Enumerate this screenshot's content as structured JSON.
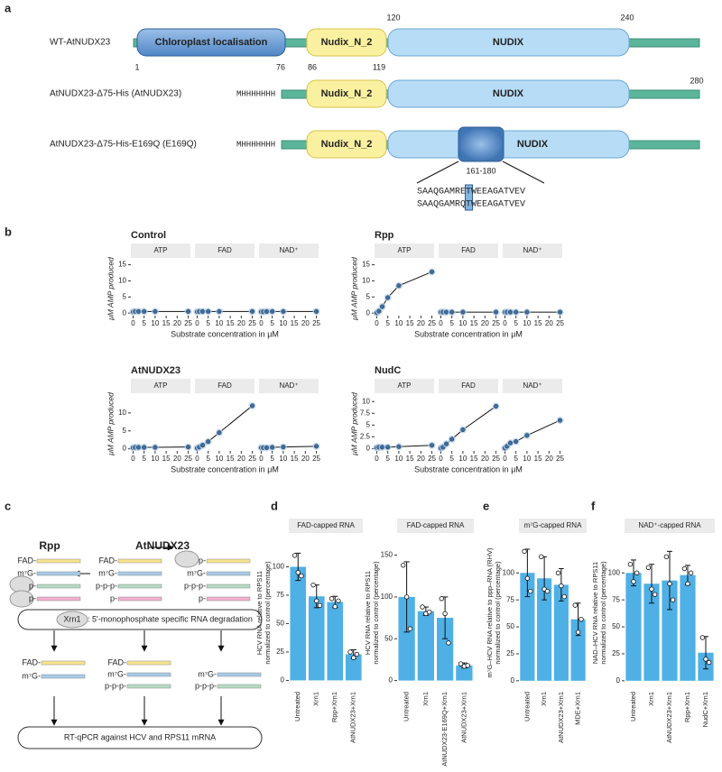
{
  "panel_labels": [
    "a",
    "b",
    "c",
    "d",
    "e",
    "f"
  ],
  "panel_a": {
    "rows": [
      "WT-AtNUDX23",
      "AtNUDX23-Δ75-His (AtNUDX23)",
      "AtNUDX23-Δ75-His-E169Q (E169Q)"
    ],
    "domains": {
      "chloroplast": "Chloroplast localisation",
      "nudix_n2": "Nudix_N_2",
      "nudix": "NUDIX"
    },
    "positions": [
      1,
      76,
      86,
      119,
      120,
      240,
      280
    ],
    "tag": "MHHHHHHH",
    "region": "161-180",
    "sequences": [
      "SAAQGAMRETWEEAGATVEV",
      "SAAQGAMRQTWEEAGATVEV"
    ]
  },
  "panel_c": {
    "headers": [
      "Rpp",
      "AtNUDX23"
    ],
    "caps": {
      "fad": "FAD-",
      "m7g": "m⁷G-",
      "ppp": "p-p-p-",
      "p": "p-"
    },
    "enzyme": "Xrn1",
    "degradation": ": 5'-monophosphate specific RNA degradation",
    "readout": "RT-qPCR against HCV and RPS11 mRNA"
  },
  "chart_data": [
    {
      "type": "line",
      "title": "Control",
      "ylabel": "μM AMP produced",
      "xlabel": "Substrate concentration in μM",
      "x": [
        0,
        1,
        2.5,
        5,
        10,
        25
      ],
      "xlim": [
        -1,
        26
      ],
      "xticks": [
        0,
        5,
        10,
        15,
        20,
        25
      ],
      "ylim": [
        -0.8,
        16
      ],
      "yticks": [
        0,
        5,
        10,
        15
      ],
      "color": "#3b6fa0",
      "facets": [
        {
          "label": "ATP",
          "values": [
            0.4,
            0.5,
            0.5,
            0.5,
            0.5,
            0.5
          ]
        },
        {
          "label": "FAD",
          "values": [
            0.4,
            0.5,
            0.5,
            0.5,
            0.5,
            0.5
          ]
        },
        {
          "label": "NAD⁺",
          "values": [
            0.4,
            0.4,
            0.5,
            0.5,
            0.5,
            0.5
          ]
        }
      ]
    },
    {
      "type": "line",
      "title": "Rpp",
      "ylabel": "μM AMP produced",
      "xlabel": "Substrate concentration in μM",
      "x": [
        0,
        1,
        2.5,
        5,
        10,
        25
      ],
      "xlim": [
        -1,
        26
      ],
      "xticks": [
        0,
        5,
        10,
        15,
        20,
        25
      ],
      "ylim": [
        -0.8,
        16
      ],
      "yticks": [
        0,
        5,
        10,
        15
      ],
      "color": "#3b6fa0",
      "facets": [
        {
          "label": "ATP",
          "values": [
            0.1,
            0.6,
            2,
            4.8,
            8.5,
            12.8
          ]
        },
        {
          "label": "FAD",
          "values": [
            0.3,
            0.3,
            0.3,
            0.3,
            0.3,
            0.3
          ]
        },
        {
          "label": "NAD⁺",
          "values": [
            0.3,
            0.3,
            0.3,
            0.3,
            0.3,
            0.3
          ]
        }
      ]
    },
    {
      "type": "line",
      "title": "AtNUDX23",
      "ylabel": "μM AMP produced",
      "xlabel": "Substrate concentration in μM",
      "x": [
        0,
        1,
        2.5,
        5,
        10,
        25
      ],
      "xlim": [
        -1,
        26
      ],
      "xticks": [
        0,
        5,
        10,
        15,
        20,
        25
      ],
      "ylim": [
        -0.6,
        14.5
      ],
      "yticks": [
        0,
        5,
        10
      ],
      "color": "#3b6fa0",
      "facets": [
        {
          "label": "ATP",
          "values": [
            0.3,
            0.4,
            0.4,
            0.4,
            0.4,
            0.5
          ]
        },
        {
          "label": "FAD",
          "values": [
            0.2,
            0.5,
            1,
            2,
            4.5,
            12
          ]
        },
        {
          "label": "NAD⁺",
          "values": [
            0.3,
            0.3,
            0.3,
            0.4,
            0.5,
            0.7
          ]
        }
      ]
    },
    {
      "type": "line",
      "title": "NudC",
      "ylabel": "μM AMP produced",
      "xlabel": "Substrate concentration in μM",
      "x": [
        0,
        1,
        2.5,
        5,
        10,
        25
      ],
      "xlim": [
        -1,
        26
      ],
      "xticks": [
        0,
        5,
        10,
        15,
        20,
        25
      ],
      "ylim": [
        -0.5,
        11
      ],
      "yticks": [
        0,
        2.5,
        5,
        7.5,
        10
      ],
      "color": "#3b6fa0",
      "facets": [
        {
          "label": "ATP",
          "values": [
            0.2,
            0.3,
            0.3,
            0.3,
            0.4,
            0.7
          ]
        },
        {
          "label": "FAD",
          "values": [
            0.1,
            0.3,
            1,
            2,
            4,
            9
          ]
        },
        {
          "label": "NAD⁺",
          "values": [
            0.1,
            0.5,
            1.2,
            1.5,
            2.8,
            6
          ]
        }
      ]
    },
    {
      "type": "bar",
      "title": "FAD-capped RNA",
      "ylabel": [
        "HCV RNA relative to RPS11",
        "normalized to control (percentage)"
      ],
      "categories": [
        "Untreated",
        "Xrn1",
        "Rpp+Xrn1",
        "AtNUDX23+Xrn1"
      ],
      "values": [
        100,
        74,
        69,
        23
      ],
      "errors": [
        12,
        10,
        5,
        4
      ],
      "points": [
        [
          110,
          95,
          92
        ],
        [
          84,
          70,
          66
        ],
        [
          72,
          65,
          70
        ],
        [
          25,
          20,
          23
        ]
      ],
      "ylim": [
        -6,
        125
      ],
      "yticks": [
        0,
        25,
        50,
        75,
        100
      ],
      "color": "#4fb0e6"
    },
    {
      "type": "bar",
      "title": "FAD-capped RNA",
      "ylabel": [
        "HCV RNA relative to RPS11",
        "normalized to control (percentage)"
      ],
      "categories": [
        "Untreated",
        "Xrn1",
        "AtNUDX23-E169Q+Xrn1",
        "AtNUDX23+Xrn1"
      ],
      "values": [
        100,
        83,
        75,
        18
      ],
      "errors": [
        42,
        5,
        25,
        3
      ],
      "points": [
        [
          138,
          100,
          62
        ],
        [
          88,
          80,
          82
        ],
        [
          98,
          80,
          45
        ],
        [
          20,
          17,
          18
        ]
      ],
      "ylim": [
        -8,
        170
      ],
      "yticks": [
        0,
        50,
        100,
        150
      ],
      "color": "#4fb0e6"
    },
    {
      "type": "bar",
      "title": "m⁷G-capped RNA",
      "ylabel": [
        "m⁷G–HCV RNA relative to ppp–RNA (RHV)",
        "normalized to control (percentage)"
      ],
      "categories": [
        "Untreated",
        "Xrn1",
        "AtNUDX23+Xrn1",
        "MDE+Xrn1"
      ],
      "values": [
        100,
        95,
        89,
        57
      ],
      "errors": [
        22,
        20,
        15,
        15
      ],
      "points": [
        [
          120,
          95,
          83
        ],
        [
          115,
          85,
          83
        ],
        [
          100,
          88,
          78
        ],
        [
          70,
          45,
          57
        ]
      ],
      "ylim": [
        -6,
        132
      ],
      "yticks": [
        0,
        25,
        50,
        75,
        100
      ],
      "color": "#4fb0e6"
    },
    {
      "type": "bar",
      "title": "NAD⁺-capped RNA",
      "ylabel": [
        "NAD–HCV RNA relative to RPS11",
        "normalized to control (percentage)"
      ],
      "categories": [
        "Untreated",
        "Xrn1",
        "AtNUDX23+Xrn1",
        "Rpp+Xrn1",
        "NudC+Xrn1"
      ],
      "values": [
        100,
        90,
        93,
        98,
        26
      ],
      "errors": [
        12,
        18,
        27,
        9,
        15
      ],
      "points": [
        [
          108,
          92,
          100
        ],
        [
          105,
          85,
          80
        ],
        [
          115,
          90,
          75
        ],
        [
          104,
          90,
          100
        ],
        [
          40,
          20,
          17
        ]
      ],
      "ylim": [
        -6,
        132
      ],
      "yticks": [
        0,
        25,
        50,
        75,
        100
      ],
      "color": "#4fb0e6"
    }
  ]
}
